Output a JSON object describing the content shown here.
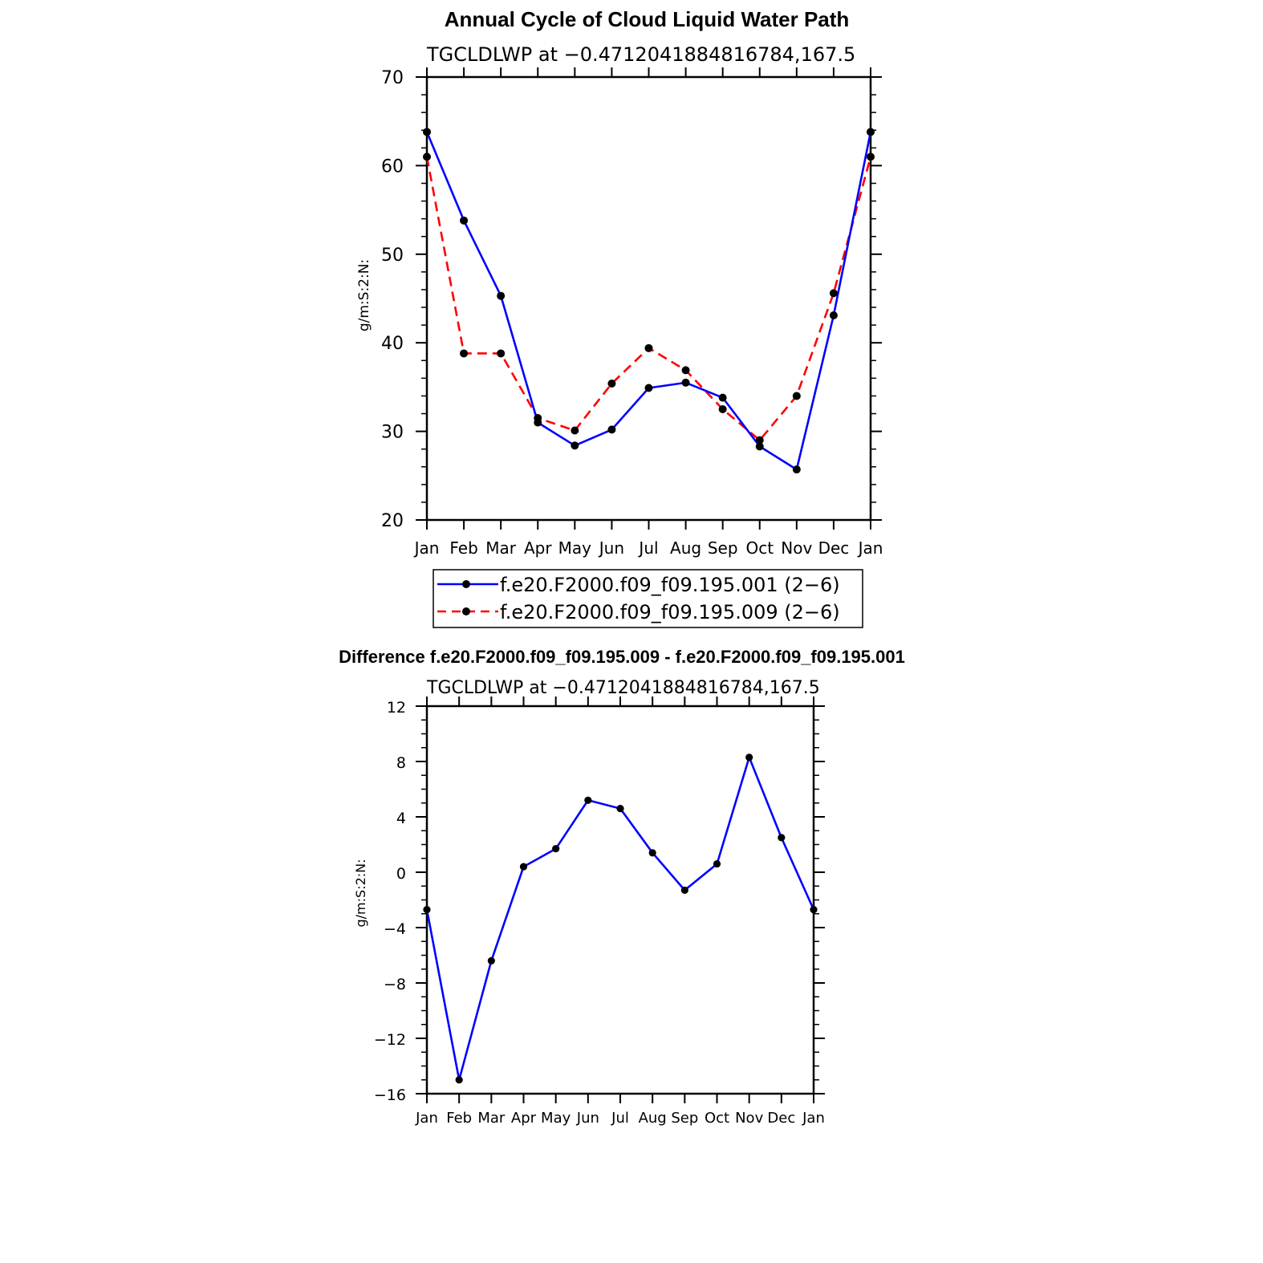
{
  "colors": {
    "series_1": "#0000ff",
    "series_2": "#ff0000",
    "marker": "#000000",
    "axis": "#000000"
  },
  "chart_data": [
    {
      "type": "line",
      "title": "Annual Cycle of Cloud Liquid Water Path",
      "subtitle": "TGCLDLWP at −0.4712041884816784,167.5",
      "xlabel": "",
      "ylabel": "g/m:S:2:N:",
      "categories": [
        "Jan",
        "Feb",
        "Mar",
        "Apr",
        "May",
        "Jun",
        "Jul",
        "Aug",
        "Sep",
        "Oct",
        "Nov",
        "Dec",
        "Jan"
      ],
      "ylim": [
        20,
        70
      ],
      "yticks": [
        20,
        30,
        40,
        50,
        60,
        70
      ],
      "ytick_labels": [
        "20",
        "30",
        "40",
        "50",
        "60",
        "70"
      ],
      "grid": false,
      "legend_placement": "bottom",
      "series": [
        {
          "name": "f.e20.F2000.f09_f09.195.001 (2−6)",
          "style": "solid",
          "color": "#0000ff",
          "values": [
            63.8,
            53.8,
            45.3,
            31.0,
            28.4,
            30.2,
            34.9,
            35.5,
            33.8,
            28.3,
            25.7,
            43.1,
            63.8
          ]
        },
        {
          "name": "f.e20.F2000.f09_f09.195.009 (2−6)",
          "style": "dashed",
          "color": "#ff0000",
          "values": [
            61.0,
            38.8,
            38.8,
            31.5,
            30.1,
            35.4,
            39.4,
            36.9,
            32.5,
            29.0,
            34.0,
            45.6,
            61.0
          ]
        }
      ]
    },
    {
      "type": "line",
      "title": "Difference f.e20.F2000.f09_f09.195.009 - f.e20.F2000.f09_f09.195.001",
      "subtitle": "TGCLDLWP at −0.4712041884816784,167.5",
      "xlabel": "",
      "ylabel": "g/m:S:2:N:",
      "categories": [
        "Jan",
        "Feb",
        "Mar",
        "Apr",
        "May",
        "Jun",
        "Jul",
        "Aug",
        "Sep",
        "Oct",
        "Nov",
        "Dec",
        "Jan"
      ],
      "ylim": [
        -16,
        12
      ],
      "yticks": [
        -16,
        -12,
        -8,
        -4,
        0,
        4,
        8,
        12
      ],
      "ytick_labels": [
        "−16",
        "−12",
        "−8",
        "−4",
        "0",
        "4",
        "8",
        "12"
      ],
      "grid": false,
      "series": [
        {
          "color": "#0000ff",
          "style": "solid",
          "values": [
            -2.7,
            -15.0,
            -6.4,
            0.4,
            1.7,
            5.2,
            4.6,
            1.4,
            -1.3,
            0.6,
            8.3,
            2.5,
            -2.7
          ]
        }
      ]
    }
  ]
}
